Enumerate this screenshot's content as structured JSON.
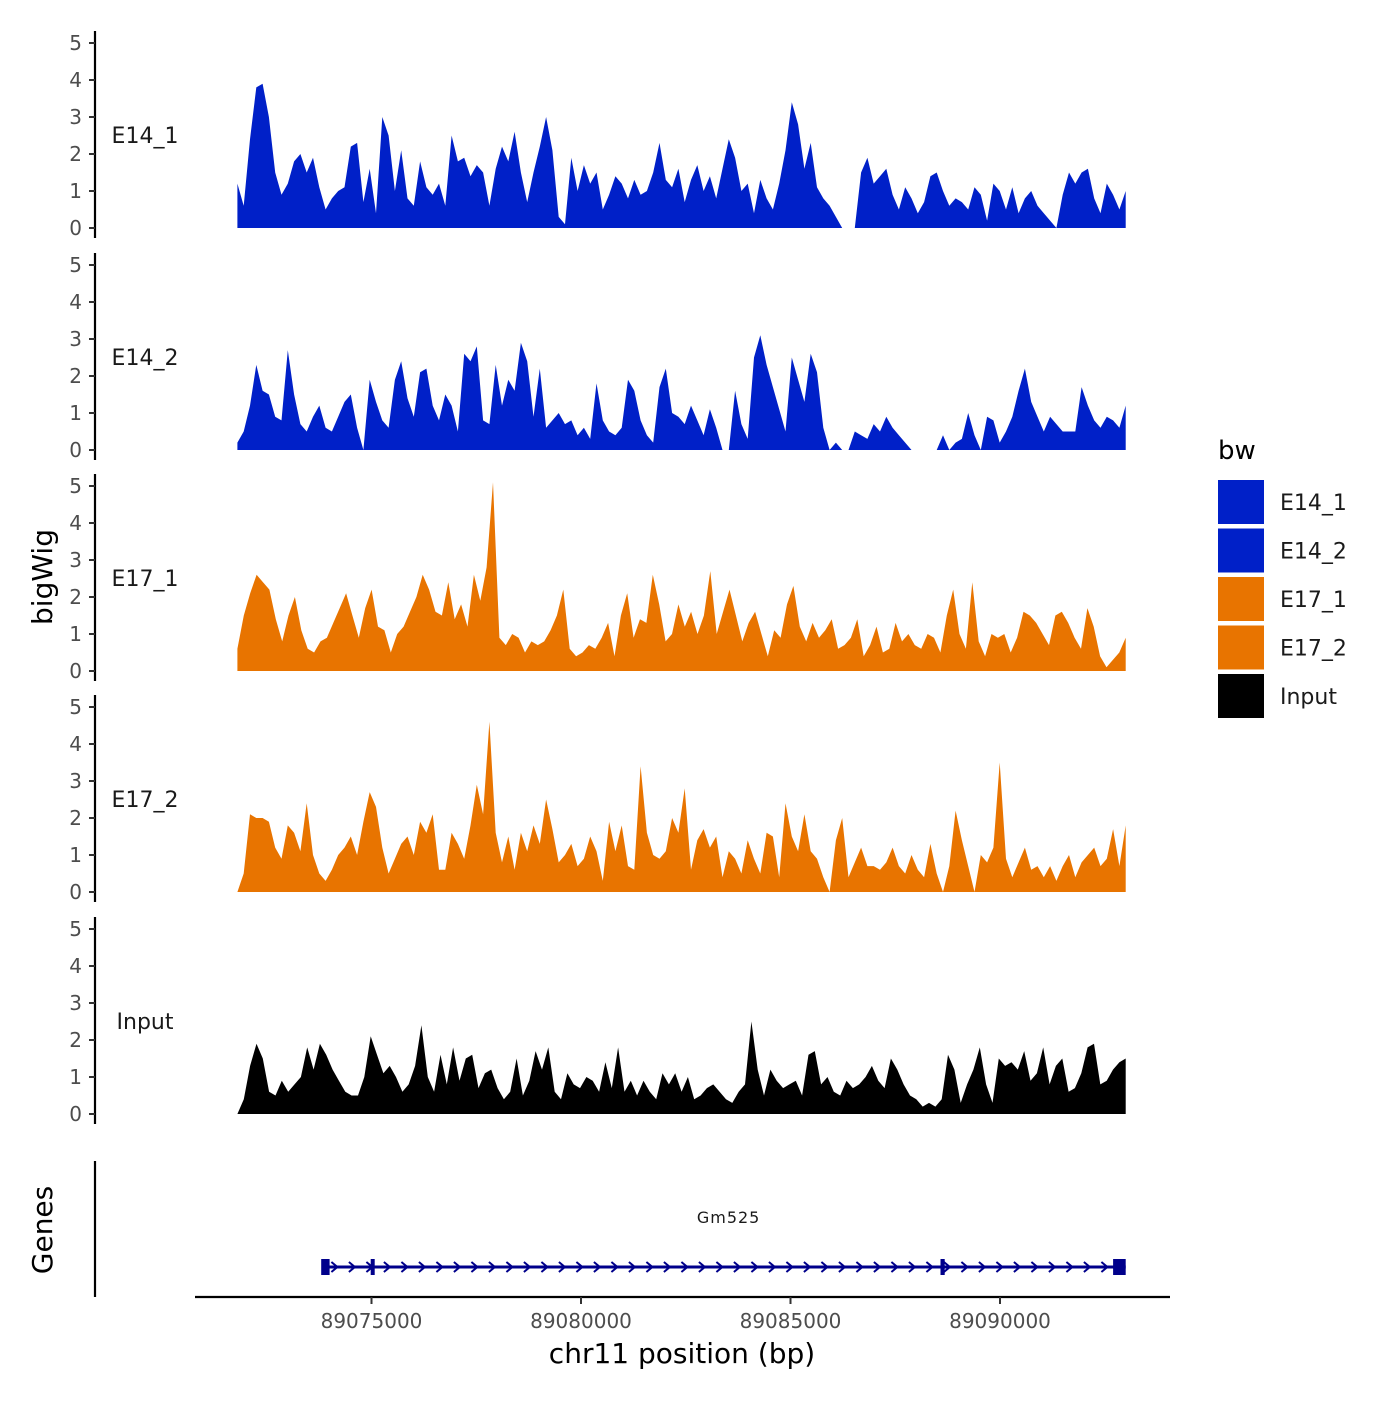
{
  "chart_data": {
    "type": "area",
    "title": "",
    "y_axis_title": "bigWig",
    "genes_axis_title": "Genes",
    "xlabel": "chr11 position (bp)",
    "x_range": [
      89071800,
      89093000
    ],
    "x_ticks": [
      89075000,
      89080000,
      89085000,
      89090000
    ],
    "x_tick_labels": [
      "89075000",
      "89080000",
      "89085000",
      "89090000"
    ],
    "y_range": [
      0,
      5
    ],
    "y_ticks": [
      0,
      1,
      2,
      3,
      4,
      5
    ],
    "y_tick_labels": [
      "0",
      "1",
      "2",
      "3",
      "4",
      "5"
    ],
    "colors": {
      "E14": "#0020c8",
      "E17": "#e87400",
      "Input": "#000000",
      "gene": "#00008b"
    },
    "legend": {
      "title": "bw",
      "position": "right",
      "entries": [
        {
          "label": "E14_1",
          "color": "#0020c8"
        },
        {
          "label": "E14_2",
          "color": "#0020c8"
        },
        {
          "label": "E17_1",
          "color": "#e87400"
        },
        {
          "label": "E17_2",
          "color": "#e87400"
        },
        {
          "label": "Input",
          "color": "#000000"
        }
      ]
    },
    "series": [
      {
        "name": "E14_1",
        "label": "E14_1",
        "color": "#0020c8",
        "x_start": 89071800,
        "x_end": 89093000,
        "values": [
          1.2,
          0.6,
          2.4,
          3.8,
          3.9,
          3.0,
          1.5,
          0.9,
          1.2,
          1.8,
          2.0,
          1.5,
          1.9,
          1.1,
          0.5,
          0.8,
          1.0,
          1.1,
          2.2,
          2.3,
          0.7,
          1.6,
          0.4,
          3.0,
          2.5,
          1.0,
          2.1,
          0.8,
          0.6,
          1.8,
          1.1,
          0.9,
          1.2,
          0.6,
          2.5,
          1.8,
          1.9,
          1.4,
          1.7,
          1.5,
          0.6,
          1.6,
          2.2,
          1.8,
          2.6,
          1.5,
          0.7,
          1.5,
          2.2,
          3.0,
          2.1,
          0.3,
          0.1,
          1.9,
          1.0,
          1.7,
          1.2,
          1.5,
          0.5,
          0.9,
          1.4,
          1.2,
          0.8,
          1.3,
          0.9,
          1.0,
          1.5,
          2.3,
          1.3,
          1.1,
          1.6,
          0.7,
          1.3,
          1.7,
          1.0,
          1.4,
          0.8,
          1.6,
          2.4,
          1.9,
          1.0,
          1.2,
          0.4,
          1.3,
          0.8,
          0.5,
          1.2,
          2.1,
          3.4,
          2.8,
          1.6,
          2.3,
          1.1,
          0.8,
          0.6,
          0.3,
          0.0,
          0.0,
          0.0,
          1.5,
          1.9,
          1.2,
          1.4,
          1.6,
          0.9,
          0.5,
          1.1,
          0.8,
          0.4,
          0.7,
          1.4,
          1.5,
          1.0,
          0.6,
          0.8,
          0.7,
          0.5,
          1.1,
          0.9,
          0.2,
          1.2,
          1.0,
          0.5,
          1.1,
          0.4,
          0.8,
          1.0,
          0.6,
          0.4,
          0.2,
          0.0,
          0.9,
          1.5,
          1.2,
          1.5,
          1.6,
          0.8,
          0.4,
          1.2,
          0.9,
          0.5,
          1.0
        ]
      },
      {
        "name": "E14_2",
        "label": "E14_2",
        "color": "#0020c8",
        "x_start": 89071800,
        "x_end": 89093000,
        "values": [
          0.2,
          0.5,
          1.2,
          2.3,
          1.6,
          1.5,
          0.9,
          0.8,
          2.7,
          1.5,
          0.7,
          0.5,
          0.9,
          1.2,
          0.6,
          0.5,
          0.9,
          1.3,
          1.5,
          0.6,
          0.0,
          1.9,
          1.3,
          0.8,
          0.6,
          1.9,
          2.4,
          1.4,
          0.9,
          2.1,
          2.2,
          1.2,
          0.8,
          1.5,
          1.2,
          0.5,
          2.6,
          2.4,
          2.8,
          0.8,
          0.7,
          2.3,
          1.2,
          1.9,
          1.6,
          2.9,
          2.4,
          0.9,
          2.2,
          0.6,
          0.8,
          1.0,
          0.7,
          0.8,
          0.4,
          0.6,
          0.3,
          1.8,
          0.8,
          0.5,
          0.4,
          0.6,
          1.9,
          1.6,
          0.8,
          0.4,
          0.2,
          1.7,
          2.2,
          1.0,
          0.9,
          0.7,
          1.2,
          0.8,
          0.4,
          1.1,
          0.6,
          0.0,
          0.0,
          1.6,
          0.7,
          0.3,
          2.5,
          3.1,
          2.3,
          1.7,
          1.1,
          0.5,
          2.5,
          1.9,
          1.3,
          2.6,
          2.1,
          0.6,
          0.0,
          0.2,
          0.0,
          0.0,
          0.5,
          0.4,
          0.3,
          0.7,
          0.5,
          0.9,
          0.6,
          0.4,
          0.2,
          0.0,
          0.0,
          0.0,
          0.0,
          0.0,
          0.4,
          0.0,
          0.2,
          0.3,
          1.0,
          0.4,
          0.0,
          0.9,
          0.8,
          0.2,
          0.5,
          0.9,
          1.6,
          2.2,
          1.3,
          0.9,
          0.5,
          0.9,
          0.7,
          0.5,
          0.5,
          0.5,
          1.7,
          1.2,
          0.8,
          0.6,
          0.9,
          0.8,
          0.6,
          1.2
        ]
      },
      {
        "name": "E17_1",
        "label": "E17_1",
        "color": "#e87400",
        "x_start": 89071800,
        "x_end": 89093000,
        "values": [
          0.6,
          1.5,
          2.1,
          2.6,
          2.4,
          2.2,
          1.4,
          0.8,
          1.5,
          2.0,
          1.1,
          0.6,
          0.5,
          0.8,
          0.9,
          1.3,
          1.7,
          2.1,
          1.5,
          0.9,
          1.7,
          2.2,
          1.2,
          1.1,
          0.5,
          1.0,
          1.2,
          1.6,
          2.0,
          2.6,
          2.2,
          1.6,
          1.5,
          2.4,
          1.4,
          1.8,
          1.2,
          2.6,
          1.9,
          2.8,
          5.1,
          0.9,
          0.7,
          1.0,
          0.9,
          0.5,
          0.8,
          0.7,
          0.8,
          1.1,
          1.5,
          2.2,
          0.6,
          0.4,
          0.5,
          0.7,
          0.6,
          0.9,
          1.3,
          0.4,
          1.5,
          2.1,
          0.9,
          1.4,
          1.3,
          2.6,
          1.8,
          0.8,
          1.0,
          1.8,
          1.2,
          1.6,
          1.0,
          1.5,
          2.7,
          1.0,
          1.6,
          2.2,
          1.5,
          0.8,
          1.3,
          1.6,
          1.0,
          0.4,
          1.1,
          0.9,
          1.8,
          2.3,
          1.2,
          0.8,
          1.3,
          0.9,
          1.1,
          1.4,
          0.6,
          0.7,
          0.9,
          1.4,
          0.4,
          0.7,
          1.2,
          0.5,
          0.6,
          1.3,
          0.8,
          1.0,
          0.7,
          0.6,
          1.0,
          0.9,
          0.5,
          1.5,
          2.2,
          1.0,
          0.6,
          2.4,
          0.8,
          0.4,
          1.0,
          0.9,
          1.0,
          0.5,
          0.9,
          1.6,
          1.5,
          1.3,
          1.0,
          0.7,
          1.5,
          1.6,
          1.3,
          0.9,
          0.6,
          1.7,
          1.2,
          0.4,
          0.1,
          0.3,
          0.5,
          0.9
        ]
      },
      {
        "name": "E17_2",
        "label": "E17_2",
        "color": "#e87400",
        "x_start": 89071800,
        "x_end": 89093000,
        "values": [
          0.0,
          0.5,
          2.1,
          2.0,
          2.0,
          1.9,
          1.2,
          0.9,
          1.8,
          1.6,
          1.1,
          2.4,
          1.0,
          0.5,
          0.3,
          0.6,
          1.0,
          1.2,
          1.5,
          1.0,
          1.9,
          2.7,
          2.3,
          1.2,
          0.5,
          0.9,
          1.3,
          1.5,
          1.0,
          1.9,
          1.6,
          2.1,
          0.6,
          0.6,
          1.6,
          1.3,
          0.9,
          1.8,
          2.9,
          2.1,
          4.6,
          1.6,
          0.8,
          1.5,
          0.6,
          1.6,
          1.1,
          1.8,
          1.3,
          2.5,
          1.7,
          0.8,
          1.0,
          1.3,
          0.7,
          0.9,
          1.5,
          1.1,
          0.3,
          1.9,
          1.1,
          1.8,
          0.7,
          0.6,
          3.4,
          1.6,
          1.0,
          0.9,
          1.1,
          2.0,
          1.6,
          2.8,
          0.6,
          1.4,
          1.7,
          1.2,
          1.5,
          0.4,
          1.1,
          0.9,
          0.5,
          1.4,
          0.9,
          0.5,
          1.6,
          1.5,
          0.4,
          2.4,
          1.5,
          1.1,
          2.1,
          1.1,
          0.9,
          0.4,
          0.0,
          1.4,
          2.0,
          0.4,
          0.8,
          1.2,
          0.7,
          0.7,
          0.6,
          0.8,
          1.2,
          0.7,
          0.5,
          1.0,
          0.6,
          0.4,
          1.3,
          0.5,
          0.0,
          0.7,
          2.2,
          1.4,
          0.7,
          0.0,
          1.0,
          0.8,
          1.2,
          3.5,
          0.9,
          0.4,
          0.8,
          1.2,
          0.6,
          0.7,
          0.4,
          0.7,
          0.3,
          0.7,
          1.0,
          0.4,
          0.8,
          1.0,
          1.2,
          0.7,
          0.9,
          1.7,
          0.7,
          1.8
        ]
      },
      {
        "name": "Input",
        "label": "Input",
        "color": "#000000",
        "x_start": 89071800,
        "x_end": 89093000,
        "values": [
          0.0,
          0.4,
          1.3,
          1.9,
          1.5,
          0.6,
          0.5,
          0.9,
          0.6,
          0.8,
          1.0,
          1.8,
          1.2,
          1.9,
          1.6,
          1.2,
          0.9,
          0.6,
          0.5,
          0.5,
          1.0,
          2.1,
          1.6,
          1.1,
          1.3,
          1.0,
          0.6,
          0.8,
          1.3,
          2.4,
          1.0,
          0.6,
          1.6,
          0.8,
          1.8,
          0.9,
          1.5,
          1.6,
          0.7,
          1.1,
          1.2,
          0.7,
          0.4,
          0.6,
          1.5,
          0.5,
          0.9,
          1.7,
          1.2,
          1.8,
          0.6,
          0.4,
          1.1,
          0.8,
          0.7,
          1.0,
          0.9,
          0.6,
          1.4,
          0.7,
          1.8,
          0.6,
          0.9,
          0.5,
          0.9,
          0.6,
          0.4,
          1.1,
          0.8,
          1.1,
          0.6,
          1.0,
          0.4,
          0.5,
          0.7,
          0.8,
          0.6,
          0.4,
          0.3,
          0.6,
          0.8,
          2.5,
          1.2,
          0.5,
          1.2,
          0.9,
          0.7,
          0.8,
          0.9,
          0.5,
          1.6,
          1.7,
          0.8,
          1.0,
          0.6,
          0.5,
          0.9,
          0.7,
          0.8,
          1.0,
          1.3,
          0.9,
          0.7,
          1.5,
          1.2,
          0.8,
          0.5,
          0.4,
          0.2,
          0.3,
          0.2,
          0.4,
          1.6,
          1.2,
          0.3,
          0.8,
          1.2,
          1.8,
          0.8,
          0.3,
          1.5,
          1.3,
          1.4,
          1.2,
          1.7,
          0.9,
          1.1,
          1.8,
          0.8,
          1.3,
          1.5,
          0.6,
          0.7,
          1.1,
          1.8,
          1.9,
          0.8,
          0.9,
          1.2,
          1.4,
          1.5
        ]
      }
    ],
    "genes": [
      {
        "name": "Gm525",
        "strand": "+",
        "start": 89073900,
        "end": 89093000,
        "exons": [
          [
            89073800,
            89074000
          ],
          [
            89074980,
            89075060
          ],
          [
            89088580,
            89088680
          ],
          [
            89092700,
            89093000
          ]
        ]
      }
    ]
  }
}
